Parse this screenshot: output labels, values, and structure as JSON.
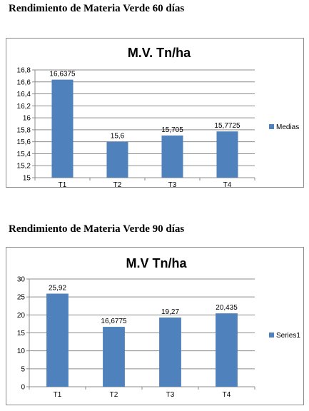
{
  "headings": {
    "h1": "Rendimiento de Materia Verde 60 días",
    "h2": "Rendimiento de Materia Verde 90 días"
  },
  "chart_data": [
    {
      "type": "bar",
      "title": "M.V. Tn/ha",
      "categories": [
        "T1",
        "T2",
        "T3",
        "T4"
      ],
      "series": [
        {
          "name": "Medias",
          "values": [
            16.6375,
            15.6,
            15.705,
            15.7725
          ]
        }
      ],
      "data_labels": [
        "16,6375",
        "15,6",
        "15,705",
        "15,7725"
      ],
      "ylim": [
        15,
        16.8
      ],
      "yticks": [
        "15",
        "15,2",
        "15,4",
        "15,6",
        "15,8",
        "16",
        "16,2",
        "16,4",
        "16,6",
        "16,8"
      ],
      "grid": true,
      "legend": "right",
      "bar_color": "#4f81bd"
    },
    {
      "type": "bar",
      "title": "M.V Tn/ha",
      "categories": [
        "T1",
        "T2",
        "T3",
        "T4"
      ],
      "series": [
        {
          "name": "Series1",
          "values": [
            25.92,
            16.6775,
            19.27,
            20.435
          ]
        }
      ],
      "data_labels": [
        "25,92",
        "16,6775",
        "19,27",
        "20,435"
      ],
      "ylim": [
        0,
        30
      ],
      "yticks": [
        "0",
        "5",
        "10",
        "15",
        "20",
        "25",
        "30"
      ],
      "grid": true,
      "legend": "right",
      "bar_color": "#4f81bd"
    }
  ]
}
